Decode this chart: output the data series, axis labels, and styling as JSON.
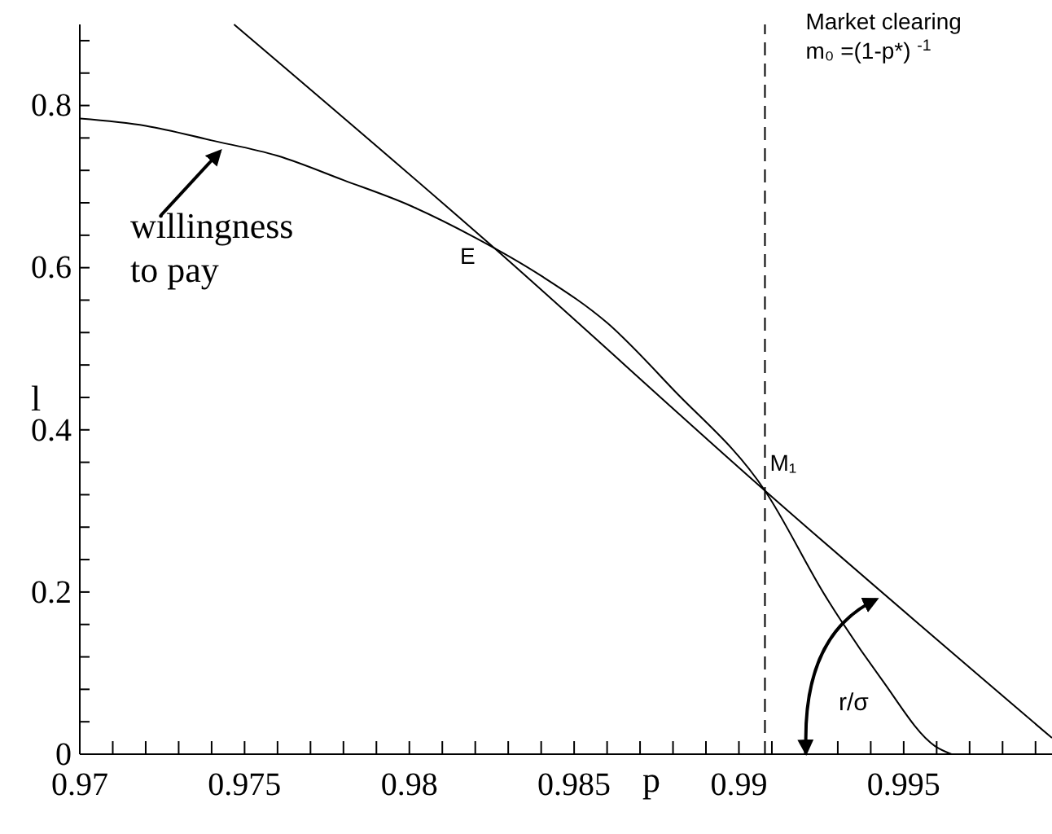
{
  "chart_data": {
    "type": "line",
    "xlabel": "p",
    "ylabel": "l",
    "xlim": [
      0.97,
      0.9995
    ],
    "ylim": [
      0,
      0.9
    ],
    "xticks": [
      0.97,
      {
        "value": 0.971,
        "label": null
      },
      {
        "value": 0.972,
        "label": null
      },
      {
        "value": 0.973,
        "label": null
      },
      {
        "value": 0.974,
        "label": null
      },
      0.975,
      {
        "value": 0.976,
        "label": null
      },
      {
        "value": 0.977,
        "label": null
      },
      {
        "value": 0.978,
        "label": null
      },
      {
        "value": 0.979,
        "label": null
      },
      0.98,
      {
        "value": 0.981,
        "label": null
      },
      {
        "value": 0.982,
        "label": null
      },
      {
        "value": 0.983,
        "label": null
      },
      {
        "value": 0.984,
        "label": null
      },
      0.985,
      {
        "value": 0.986,
        "label": null
      },
      {
        "value": 0.987,
        "label": null
      },
      {
        "value": 0.988,
        "label": null
      },
      {
        "value": 0.989,
        "label": null
      },
      0.99,
      {
        "value": 0.991,
        "label": null
      },
      {
        "value": 0.992,
        "label": null
      },
      {
        "value": 0.993,
        "label": null
      },
      {
        "value": 0.994,
        "label": null
      },
      0.995,
      {
        "value": 0.996,
        "label": null
      },
      {
        "value": 0.997,
        "label": null
      },
      {
        "value": 0.998,
        "label": null
      },
      {
        "value": 0.999,
        "label": null
      }
    ],
    "yticks": [
      0,
      {
        "value": 0.04,
        "label": null
      },
      {
        "value": 0.08,
        "label": null
      },
      {
        "value": 0.12,
        "label": null
      },
      {
        "value": 0.16,
        "label": null
      },
      0.2,
      {
        "value": 0.24,
        "label": null
      },
      {
        "value": 0.28,
        "label": null
      },
      {
        "value": 0.32,
        "label": null
      },
      {
        "value": 0.36,
        "label": null
      },
      0.4,
      {
        "value": 0.44,
        "label": null
      },
      {
        "value": 0.48,
        "label": null
      },
      {
        "value": 0.52,
        "label": null
      },
      {
        "value": 0.56,
        "label": null
      },
      0.6,
      {
        "value": 0.64,
        "label": null
      },
      {
        "value": 0.68,
        "label": null
      },
      {
        "value": 0.72,
        "label": null
      },
      {
        "value": 0.76,
        "label": null
      },
      0.8,
      {
        "value": 0.84,
        "label": null
      },
      {
        "value": 0.88,
        "label": null
      }
    ],
    "grid": false,
    "marker": "none",
    "line_style": "solid",
    "series": [
      {
        "color": "#000000",
        "x": [
          0.97,
          0.972,
          0.974,
          0.976,
          0.978,
          0.98,
          0.982,
          0.984,
          0.986,
          0.988,
          0.99079,
          0.99264,
          0.9943,
          0.99595,
          0.99645
        ],
        "values": [
          0.784,
          0.775,
          0.757,
          0.738,
          0.708,
          0.677,
          0.637,
          0.59,
          0.532,
          0.45,
          0.325,
          0.194,
          0.094,
          0.01,
          0
        ]
      },
      {
        "color": "#000000",
        "x": [
          0.97468,
          0.98233,
          0.99079,
          0.9995
        ],
        "values": [
          0.9,
          0.633,
          0.325,
          0.02
        ]
      }
    ],
    "ref_lines": [
      {
        "axis": "x",
        "value": 0.99079,
        "label": "Market clearing\nm₀ =(1-p*) $^{-1}$",
        "line_style": "dashed",
        "color": "#000000"
      }
    ],
    "annotations": [
      "willingness\nto pay",
      {
        "text": "E",
        "x": 0.98233,
        "y": 0.633
      },
      {
        "text": "M₁",
        "x": 0.99079,
        "y": 0.325
      },
      "r/σ"
    ]
  }
}
